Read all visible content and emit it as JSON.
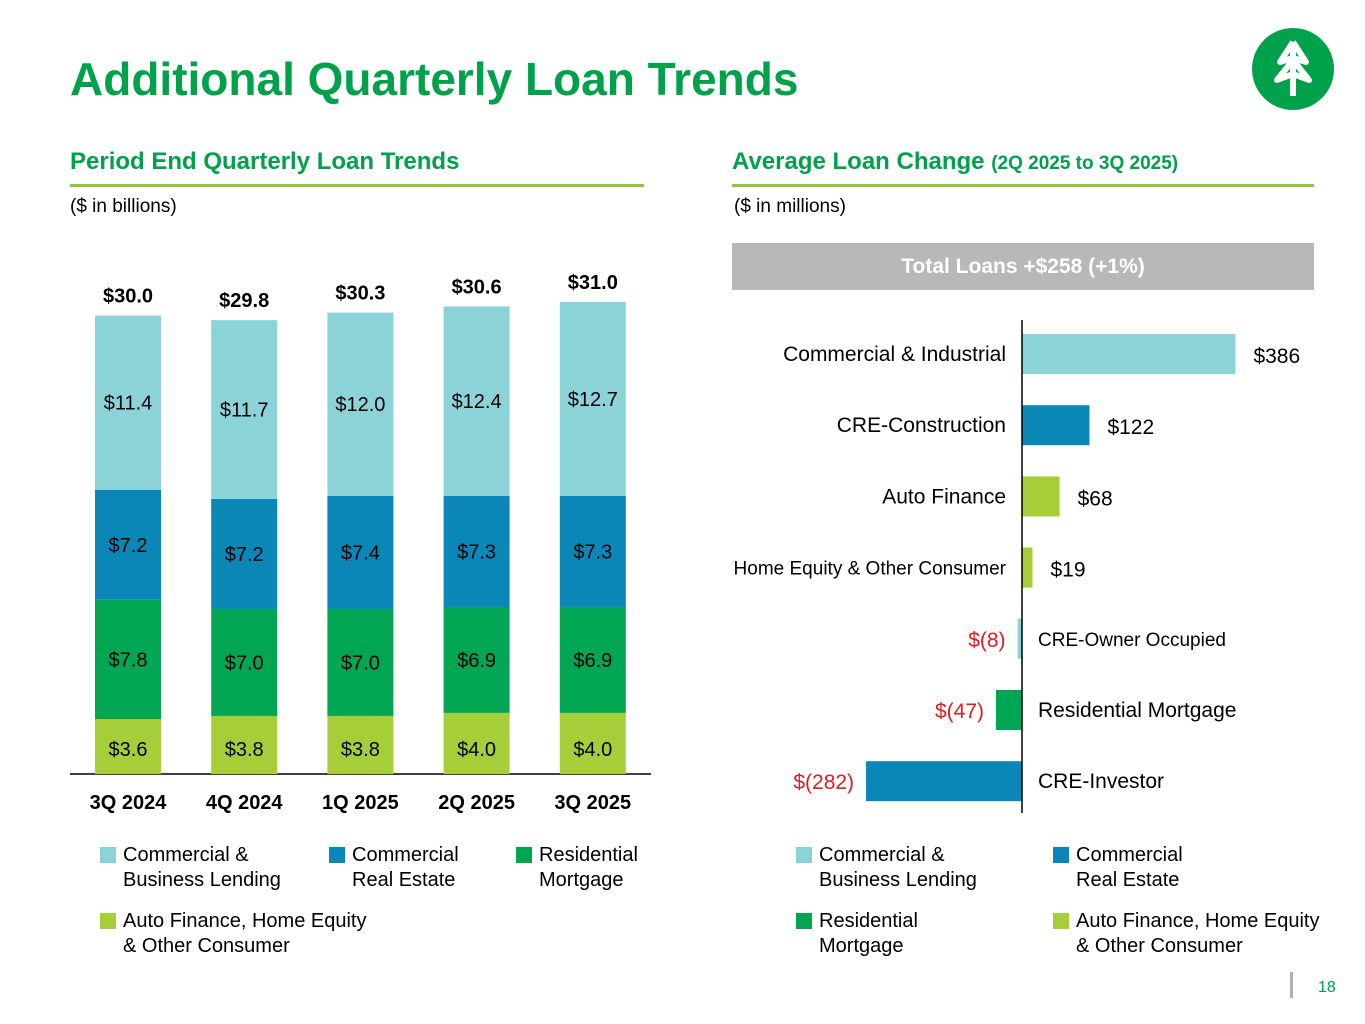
{
  "title": "Additional Quarterly Loan Trends",
  "colors": {
    "brand_green": "#00A14B",
    "rule_green": "#8DC63F",
    "commercial_business": "#8CD3D8",
    "commercial_real_estate": "#0B87B7",
    "residential_mortgage": "#00A651",
    "auto_home_consumer": "#A6CE39",
    "negative_label": "#E21A22",
    "banner_gray": "#B8B8B8"
  },
  "left": {
    "heading": "Period End Quarterly Loan Trends",
    "units": "($ in billions)",
    "legend": [
      {
        "label": "Commercial & Business Lending",
        "color": "#8CD3D8"
      },
      {
        "label": "Commercial Real Estate",
        "color": "#0B87B7"
      },
      {
        "label": "Residential Mortgage",
        "color": "#00A651"
      },
      {
        "label": "Auto Finance, Home Equity & Other Consumer",
        "color": "#A6CE39"
      }
    ]
  },
  "right": {
    "heading": "Average Loan Change",
    "heading_small": "(2Q 2025 to 3Q 2025)",
    "units": "($ in millions)",
    "banner": "Total Loans +$258 (+1%)",
    "legend": [
      {
        "label": "Commercial & Business Lending",
        "color": "#8CD3D8"
      },
      {
        "label": "Commercial Real Estate",
        "color": "#0B87B7"
      },
      {
        "label": "Residential Mortgage",
        "color": "#00A651"
      },
      {
        "label": "Auto Finance, Home Equity & Other Consumer",
        "color": "#A6CE39"
      }
    ]
  },
  "chart_data": [
    {
      "type": "bar",
      "stacked": true,
      "title": "Period End Quarterly Loan Trends",
      "units": "$ in billions",
      "categories": [
        "3Q 2024",
        "4Q 2024",
        "1Q 2025",
        "2Q 2025",
        "3Q 2025"
      ],
      "series": [
        {
          "name": "Auto Finance, Home Equity & Other Consumer",
          "color": "#A6CE39",
          "values": [
            3.6,
            3.8,
            3.8,
            4.0,
            4.0
          ],
          "labels": [
            "$3.6",
            "$3.8",
            "$3.8",
            "$4.0",
            "$4.0"
          ]
        },
        {
          "name": "Residential Mortgage",
          "color": "#00A651",
          "values": [
            7.8,
            7.0,
            7.0,
            6.9,
            6.9
          ],
          "labels": [
            "$7.8",
            "$7.0",
            "$7.0",
            "$6.9",
            "$6.9"
          ]
        },
        {
          "name": "Commercial Real Estate",
          "color": "#0B87B7",
          "values": [
            7.2,
            7.2,
            7.4,
            7.3,
            7.3
          ],
          "labels": [
            "$7.2",
            "$7.2",
            "$7.4",
            "$7.3",
            "$7.3"
          ]
        },
        {
          "name": "Commercial & Business Lending",
          "color": "#8CD3D8",
          "values": [
            11.4,
            11.7,
            12.0,
            12.4,
            12.7
          ],
          "labels": [
            "$11.4",
            "$11.7",
            "$12.0",
            "$12.4",
            "$12.7"
          ]
        }
      ],
      "totals": [
        30.0,
        29.8,
        30.3,
        30.6,
        31.0
      ],
      "total_labels": [
        "$30.0",
        "$29.8",
        "$30.3",
        "$30.6",
        "$31.0"
      ],
      "ylim": [
        0,
        31
      ]
    },
    {
      "type": "bar",
      "orientation": "horizontal",
      "title": "Average Loan Change (2Q 2025 to 3Q 2025)",
      "units": "$ in millions",
      "categories": [
        "Commercial & Industrial",
        "CRE-Construction",
        "Auto Finance",
        "Home Equity & Other Consumer",
        "CRE-Owner Occupied",
        "Residential Mortgage",
        "CRE-Investor"
      ],
      "values": [
        386,
        122,
        68,
        19,
        -8,
        -47,
        -282
      ],
      "value_labels": [
        "$386",
        "$122",
        "$68",
        "$19",
        "$(8)",
        "$(47)",
        "$(282)"
      ],
      "colors": [
        "#8CD3D8",
        "#0B87B7",
        "#A6CE39",
        "#A6CE39",
        "#8CD3D8",
        "#00A651",
        "#0B87B7"
      ],
      "xlim": [
        -282,
        386
      ]
    }
  ],
  "footer": {
    "page_number": "18"
  }
}
